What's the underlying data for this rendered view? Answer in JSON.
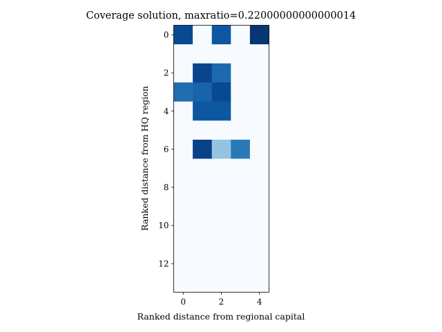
{
  "chart_data": {
    "type": "heatmap",
    "title": "Coverage solution, maxratio=0.22000000000000014",
    "xlabel": "Ranked distance from regional capital",
    "ylabel": "Ranked distance from HQ region",
    "colormap": "Blues",
    "xticks": [
      0,
      2,
      4
    ],
    "yticks": [
      0,
      2,
      4,
      6,
      8,
      10,
      12
    ],
    "n_cols": 5,
    "n_rows": 14,
    "xlim": [
      -0.5,
      4.5
    ],
    "ylim": [
      13.5,
      -0.5
    ],
    "vmin": 0,
    "vmax": 1,
    "matrix": [
      [
        0.9,
        0.0,
        0.85,
        0.0,
        0.98
      ],
      [
        0.0,
        0.0,
        0.0,
        0.0,
        0.0
      ],
      [
        0.0,
        0.92,
        0.78,
        0.0,
        0.0
      ],
      [
        0.76,
        0.8,
        0.9,
        0.0,
        0.0
      ],
      [
        0.0,
        0.85,
        0.85,
        0.0,
        0.0
      ],
      [
        0.0,
        0.0,
        0.0,
        0.0,
        0.0
      ],
      [
        0.0,
        0.93,
        0.4,
        0.72,
        0.0
      ],
      [
        0.0,
        0.0,
        0.0,
        0.0,
        0.0
      ],
      [
        0.0,
        0.0,
        0.0,
        0.0,
        0.0
      ],
      [
        0.0,
        0.0,
        0.0,
        0.0,
        0.0
      ],
      [
        0.0,
        0.0,
        0.0,
        0.0,
        0.0
      ],
      [
        0.0,
        0.0,
        0.0,
        0.0,
        0.0
      ],
      [
        0.0,
        0.0,
        0.0,
        0.0,
        0.0
      ],
      [
        0.0,
        0.0,
        0.0,
        0.0,
        0.0
      ]
    ]
  }
}
